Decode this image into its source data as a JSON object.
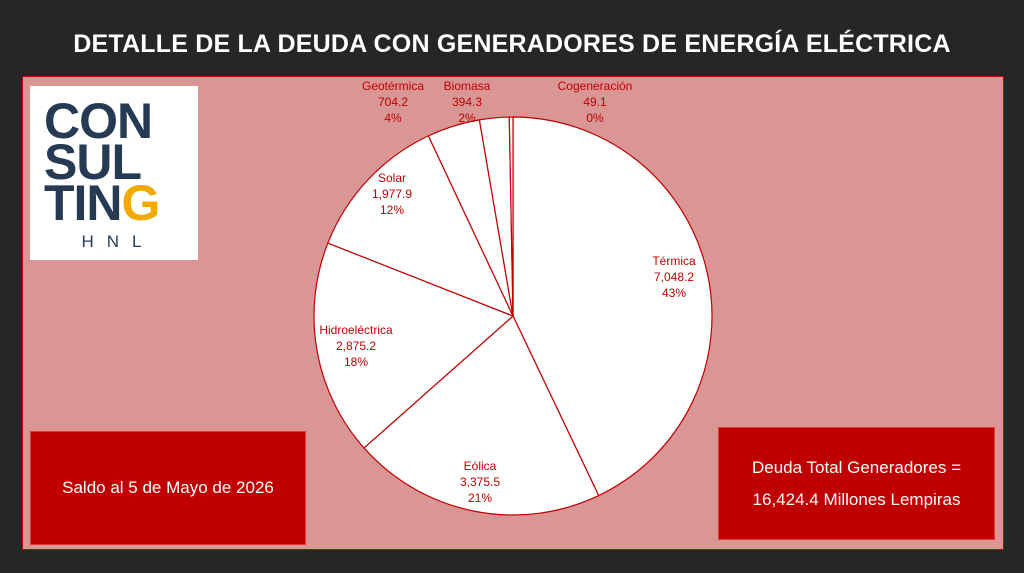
{
  "title": "DETALLE DE LA DEUDA CON GENERADORES DE ENERGÍA ELÉCTRICA",
  "logo": {
    "line1": "CON",
    "line2": "SUL",
    "line3a": "TIN",
    "line3b": "G",
    "line4": "HNL"
  },
  "saldo_text": "Saldo al 5 de Mayo de 2026",
  "total": {
    "line1": "Deuda Total Generadores =",
    "line2": "16,424.4 Millones Lempiras"
  },
  "colors": {
    "background": "#262626",
    "panel": "#d99694",
    "accent": "#c00000",
    "slice": "#ffffff",
    "logo_blue": "#263a54",
    "logo_yellow": "#f2a900"
  },
  "chart_data": {
    "type": "pie",
    "title": "",
    "slices": [
      {
        "name": "Térmica",
        "value_label": "7,048.2",
        "value": 7048.2,
        "pct_label": "43%"
      },
      {
        "name": "Eólica",
        "value_label": "3,375.5",
        "value": 3375.5,
        "pct_label": "21%"
      },
      {
        "name": "Hidroeléctrica",
        "value_label": "2,875.2",
        "value": 2875.2,
        "pct_label": "18%"
      },
      {
        "name": "Solar",
        "value_label": "1,977.9",
        "value": 1977.9,
        "pct_label": "12%"
      },
      {
        "name": "Geotérmica",
        "value_label": "704.2",
        "value": 704.2,
        "pct_label": "4%"
      },
      {
        "name": "Biomasa",
        "value_label": "394.3",
        "value": 394.3,
        "pct_label": "2%"
      },
      {
        "name": "Cogeneración",
        "value_label": "49.1",
        "value": 49.1,
        "pct_label": "0%"
      }
    ]
  }
}
